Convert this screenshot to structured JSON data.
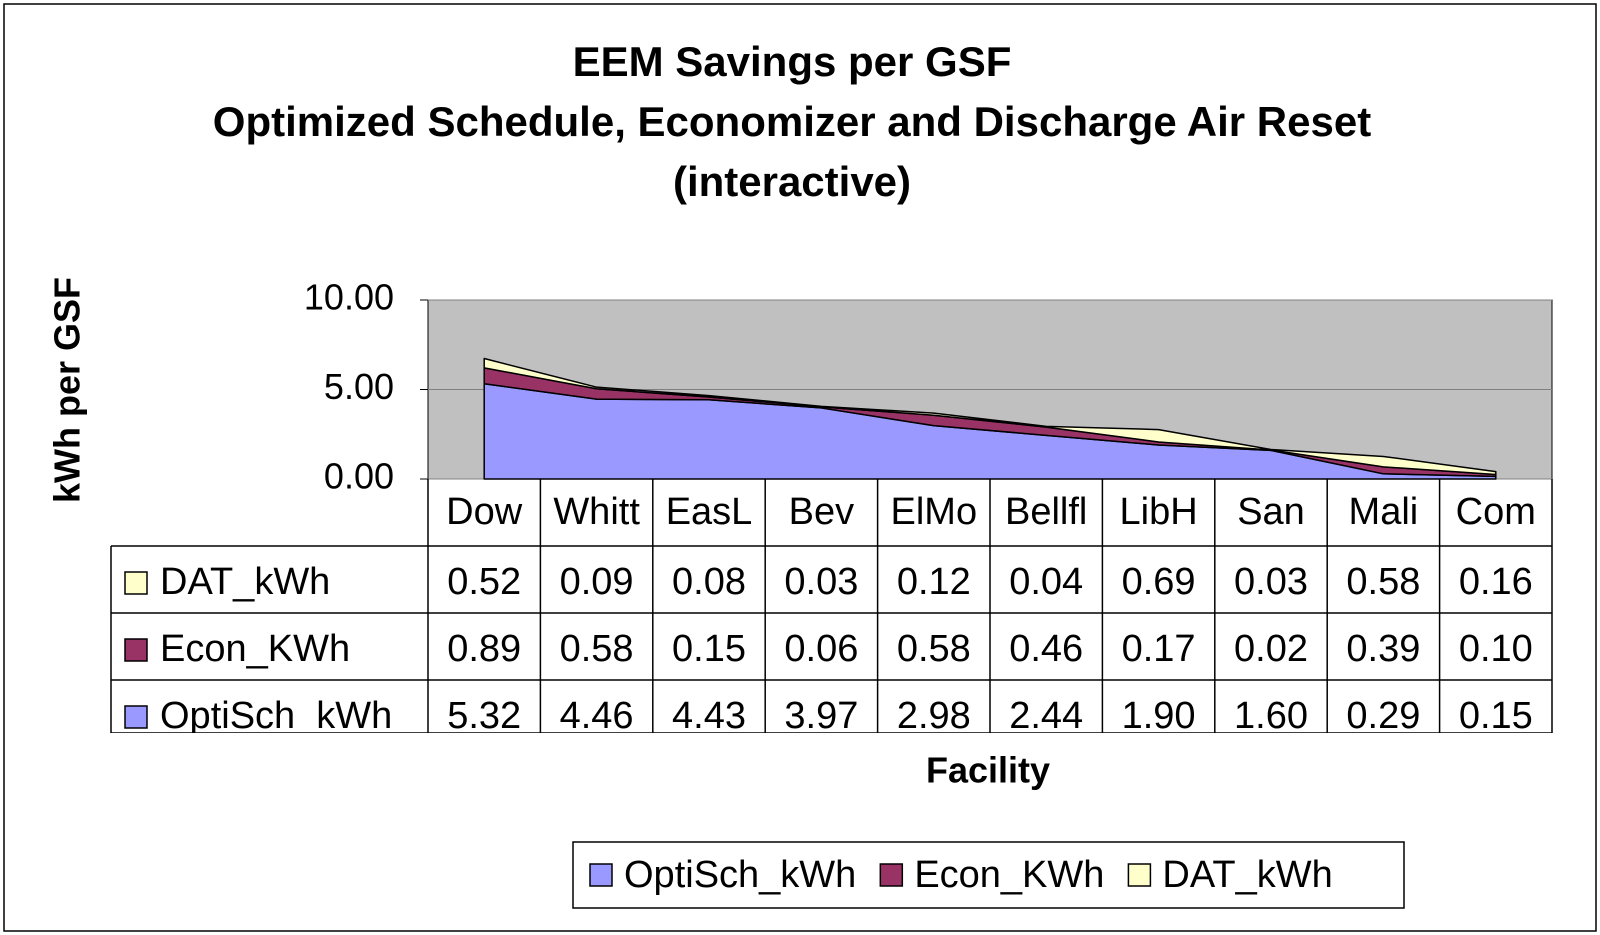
{
  "chart_data": {
    "type": "stacked_area",
    "title": "EEM Savings per GSF",
    "subtitle": "Optimized Schedule, Economizer and Discharge Air Reset (interactive)",
    "x_label": "Facility",
    "y_label": "kWh per GSF",
    "categories": [
      "Dow",
      "Whitt",
      "EasL",
      "Bev",
      "ElMo",
      "Bellfl",
      "LibH",
      "San",
      "Mali",
      "Com"
    ],
    "series": [
      {
        "name": "OptiSch_kWh",
        "color": "#9999ff",
        "values": [
          5.32,
          4.46,
          4.43,
          3.97,
          2.98,
          2.44,
          1.9,
          1.6,
          0.29,
          0.15
        ],
        "value_labels": [
          "5.32",
          "4.46",
          "4.43",
          "3.97",
          "2.98",
          "2.44",
          "1.90",
          "1.60",
          "0.29",
          "0.15"
        ]
      },
      {
        "name": "Econ_KWh",
        "color": "#993366",
        "values": [
          0.89,
          0.58,
          0.15,
          0.06,
          0.58,
          0.46,
          0.17,
          0.02,
          0.39,
          0.1
        ],
        "value_labels": [
          "0.89",
          "0.58",
          "0.15",
          "0.06",
          "0.58",
          "0.46",
          "0.17",
          "0.02",
          "0.39",
          "0.10"
        ]
      },
      {
        "name": "DAT_kWh",
        "color": "#ffffcc",
        "values": [
          0.52,
          0.09,
          0.08,
          0.03,
          0.12,
          0.04,
          0.69,
          0.03,
          0.58,
          0.16
        ],
        "value_labels": [
          "0.52",
          "0.09",
          "0.08",
          "0.03",
          "0.12",
          "0.04",
          "0.69",
          "0.03",
          "0.58",
          "0.16"
        ]
      }
    ],
    "ylim": [
      0,
      10
    ],
    "yticks": [
      {
        "value": 0,
        "label": "0.00"
      },
      {
        "value": 5,
        "label": "5.00"
      },
      {
        "value": 10,
        "label": "10.00"
      }
    ],
    "grid": true,
    "plot_background": "#c0c0c0",
    "legend": "bottom"
  }
}
